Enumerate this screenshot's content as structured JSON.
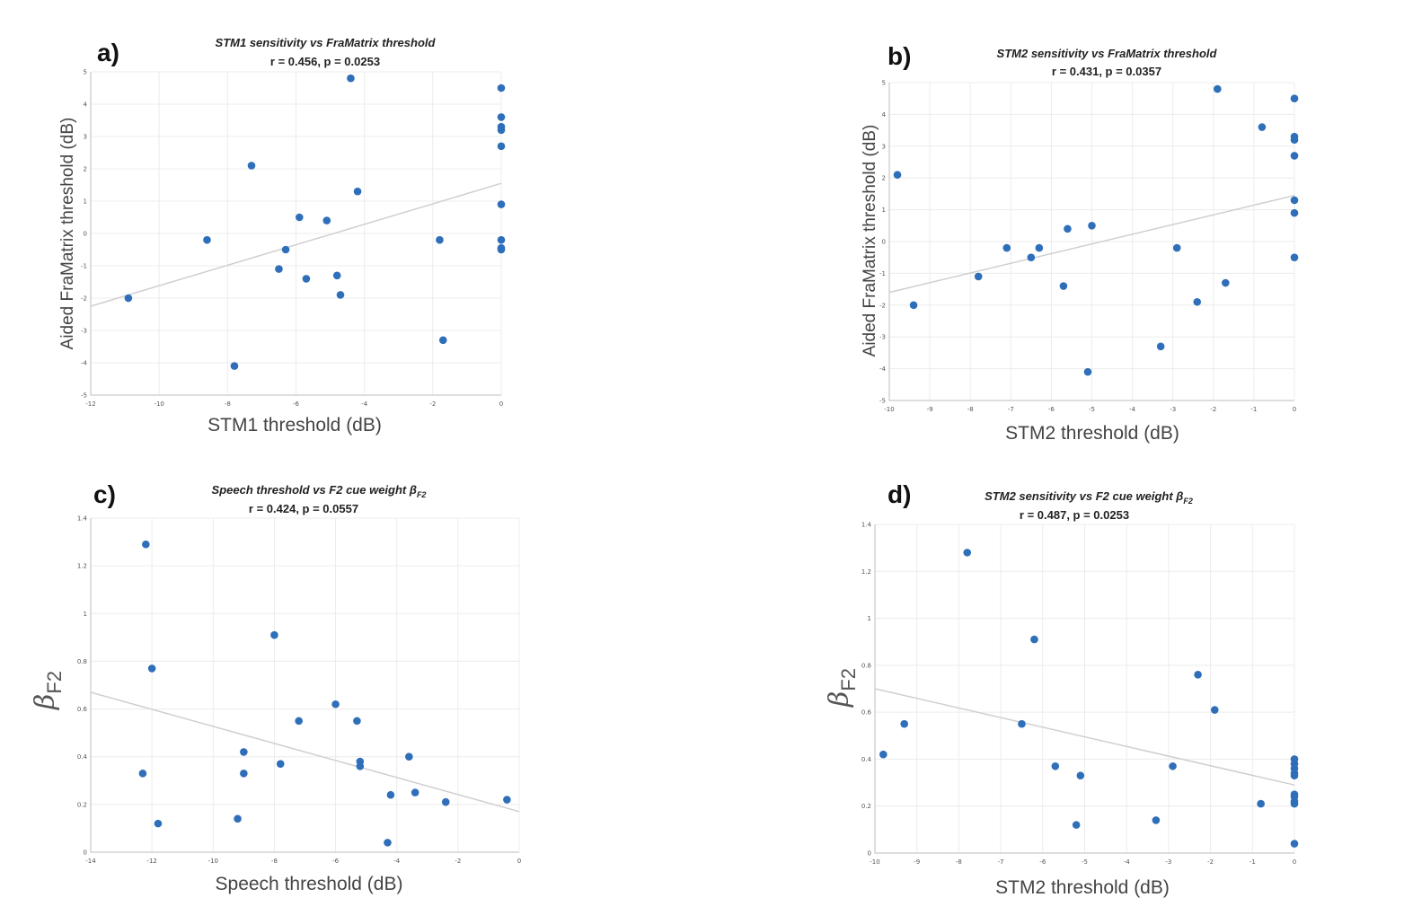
{
  "chart_data": [
    {
      "type": "scatter",
      "panel_label": "a)",
      "title": "STM1 sensitivity vs FraMatrix threshold",
      "stats": "r = 0.456, p = 0.0253",
      "xlabel": "STM1 threshold (dB)",
      "ylabel": "Aided FraMatrix threshold (dB)",
      "xlim": [
        -12,
        0
      ],
      "ylim": [
        -5,
        5
      ],
      "xticks": [
        -12,
        -10,
        -8,
        -6,
        -4,
        -2,
        0
      ],
      "yticks": [
        -5,
        -4,
        -3,
        -2,
        -1,
        0,
        1,
        2,
        3,
        4,
        5
      ],
      "grid": true,
      "fit_line": [
        [
          -12,
          -2.25
        ],
        [
          0,
          1.55
        ]
      ],
      "x": [
        -10.9,
        -8.6,
        -7.3,
        -7.8,
        -6.5,
        -6.3,
        -5.9,
        -5.7,
        -5.1,
        -4.8,
        -4.7,
        -4.4,
        -4.2,
        -1.8,
        -1.7,
        0,
        0,
        0,
        0,
        0,
        0,
        0,
        0,
        0
      ],
      "y": [
        -2.0,
        -0.2,
        2.1,
        -4.1,
        -1.1,
        -0.5,
        0.5,
        -1.4,
        0.4,
        -1.3,
        -1.9,
        4.8,
        1.3,
        -0.2,
        -3.3,
        4.5,
        3.6,
        3.3,
        3.2,
        2.7,
        0.9,
        -0.2,
        -0.5,
        -0.45
      ]
    },
    {
      "type": "scatter",
      "panel_label": "b)",
      "title": "STM2 sensitivity vs FraMatrix threshold",
      "stats": "r = 0.431, p = 0.0357",
      "xlabel": "STM2 threshold (dB)",
      "ylabel": "Aided FraMatrix threshold (dB)",
      "xlim": [
        -10,
        0
      ],
      "ylim": [
        -5,
        5
      ],
      "xticks": [
        -10,
        -9,
        -8,
        -7,
        -6,
        -5,
        -4,
        -3,
        -2,
        -1,
        0
      ],
      "yticks": [
        -5,
        -4,
        -3,
        -2,
        -1,
        0,
        1,
        2,
        3,
        4,
        5
      ],
      "grid": true,
      "fit_line": [
        [
          -10,
          -1.6
        ],
        [
          0,
          1.45
        ]
      ],
      "x": [
        -9.8,
        -9.4,
        -7.8,
        -7.1,
        -6.5,
        -6.3,
        -5.7,
        -5.6,
        -5.1,
        -5.0,
        -3.3,
        -2.9,
        -2.4,
        -1.9,
        -1.7,
        -0.8,
        0,
        0,
        0,
        0,
        0,
        0,
        0
      ],
      "y": [
        2.1,
        -2.0,
        -1.1,
        -0.2,
        -0.5,
        -0.2,
        -1.4,
        0.4,
        -4.1,
        0.5,
        -3.3,
        -0.2,
        -1.9,
        4.8,
        -1.3,
        3.6,
        4.5,
        3.3,
        3.2,
        2.7,
        1.3,
        0.9,
        -0.5
      ]
    },
    {
      "type": "scatter",
      "panel_label": "c)",
      "title": "Speech threshold vs F2 cue weight β",
      "title_sub": "F2",
      "stats": "r = 0.424, p = 0.0557",
      "xlabel": "Speech threshold (dB)",
      "ylabel_main": "β",
      "ylabel_sub": "F2",
      "xlim": [
        -14,
        0
      ],
      "ylim": [
        0,
        1.4
      ],
      "xticks": [
        -14,
        -12,
        -10,
        -8,
        -6,
        -4,
        -2,
        0
      ],
      "yticks": [
        0,
        0.2,
        0.4,
        0.6,
        0.8,
        1,
        1.2,
        1.4
      ],
      "grid": true,
      "fit_line": [
        [
          -14,
          0.67
        ],
        [
          0,
          0.17
        ]
      ],
      "x": [
        -12.2,
        -12.0,
        -12.3,
        -11.8,
        -9.2,
        -9.0,
        -9.0,
        -8.0,
        -7.8,
        -7.2,
        -6.0,
        -5.3,
        -5.2,
        -5.2,
        -4.3,
        -4.2,
        -3.6,
        -3.4,
        -2.4,
        -0.4
      ],
      "y": [
        1.29,
        0.77,
        0.33,
        0.12,
        0.14,
        0.42,
        0.33,
        0.91,
        0.37,
        0.55,
        0.62,
        0.55,
        0.38,
        0.36,
        0.04,
        0.24,
        0.4,
        0.25,
        0.21,
        0.22
      ]
    },
    {
      "type": "scatter",
      "panel_label": "d)",
      "title": "STM2 sensitivity vs F2 cue weight β",
      "title_sub": "F2",
      "stats": "r = 0.487, p = 0.0253",
      "xlabel": "STM2 threshold (dB)",
      "ylabel_main": "β",
      "ylabel_sub": "F2",
      "xlim": [
        -10,
        0
      ],
      "ylim": [
        0,
        1.4
      ],
      "xticks": [
        -10,
        -9,
        -8,
        -7,
        -6,
        -5,
        -4,
        -3,
        -2,
        -1,
        0
      ],
      "yticks": [
        0,
        0.2,
        0.4,
        0.6,
        0.8,
        1,
        1.2,
        1.4
      ],
      "grid": true,
      "fit_line": [
        [
          -10,
          0.7
        ],
        [
          0,
          0.29
        ]
      ],
      "x": [
        -9.8,
        -9.3,
        -7.8,
        -6.5,
        -6.2,
        -5.7,
        -5.2,
        -5.1,
        -3.3,
        -2.9,
        -2.3,
        -1.9,
        -0.8,
        0,
        0,
        0,
        0,
        0,
        0,
        0,
        0,
        0,
        0
      ],
      "y": [
        0.42,
        0.55,
        1.28,
        0.55,
        0.91,
        0.37,
        0.12,
        0.33,
        0.14,
        0.37,
        0.76,
        0.61,
        0.21,
        0.4,
        0.38,
        0.36,
        0.34,
        0.33,
        0.25,
        0.24,
        0.22,
        0.21,
        0.04
      ]
    }
  ]
}
